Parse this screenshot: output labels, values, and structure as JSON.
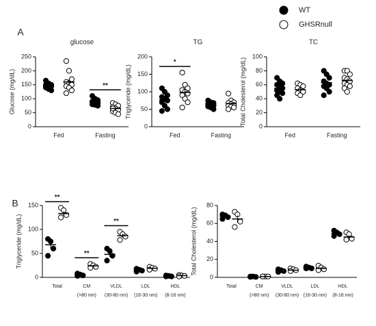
{
  "panel_labels": [
    "A",
    "B"
  ],
  "legend": [
    {
      "name": "WT",
      "fill": "#000000"
    },
    {
      "name": "GHSRnull",
      "fill": "#ffffff"
    }
  ],
  "chart_data": [
    {
      "type": "dot",
      "title": "glucose",
      "ylabel": "Glucose (mg/dL)",
      "categories": [
        "Fed",
        "Fasting"
      ],
      "ylim": [
        0,
        250
      ],
      "yticks": [
        0,
        50,
        100,
        150,
        200,
        250
      ],
      "series": [
        {
          "values": [
            [
              165,
              155,
              150,
              150,
              148,
              145,
              140,
              135,
              130,
              145
            ],
            [
              110,
              100,
              95,
              90,
              88,
              85,
              80,
              78,
              75,
              90
            ]
          ],
          "means": [
            148,
            88
          ],
          "errors": [
            5,
            4
          ]
        },
        {
          "values": [
            [
              235,
              200,
              170,
              160,
              155,
              150,
              145,
              140,
              130,
              120
            ],
            [
              85,
              80,
              75,
              70,
              65,
              60,
              55,
              50,
              45,
              65
            ]
          ],
          "means": [
            160,
            65
          ],
          "errors": [
            10,
            5
          ]
        }
      ],
      "annotations": [
        {
          "label": "**",
          "category": 1
        }
      ]
    },
    {
      "type": "dot",
      "title": "TG",
      "ylabel": "Triglyceride (mg/dL)",
      "categories": [
        "Fed",
        "Fasting"
      ],
      "ylim": [
        0,
        200
      ],
      "yticks": [
        0,
        50,
        100,
        150,
        200
      ],
      "series": [
        {
          "values": [
            [
              110,
              100,
              90,
              85,
              80,
              75,
              70,
              60,
              50,
              45
            ],
            [
              75,
              70,
              68,
              65,
              62,
              60,
              58,
              55,
              50
            ]
          ],
          "means": [
            77,
            63
          ],
          "errors": [
            6,
            3
          ]
        },
        {
          "values": [
            [
              155,
              120,
              110,
              105,
              100,
              95,
              90,
              80,
              70,
              55
            ],
            [
              95,
              75,
              70,
              68,
              65,
              62,
              60,
              58,
              55,
              50
            ]
          ],
          "means": [
            98,
            66
          ],
          "errors": [
            9,
            4
          ]
        }
      ],
      "annotations": [
        {
          "label": "*",
          "category": 0
        }
      ]
    },
    {
      "type": "dot",
      "title": "TC",
      "ylabel": "Total Cholesterol (mg/dL)",
      "categories": [
        "Fed",
        "Fasting"
      ],
      "ylim": [
        0,
        100
      ],
      "yticks": [
        0,
        20,
        40,
        60,
        80,
        100
      ],
      "series": [
        {
          "values": [
            [
              70,
              65,
              62,
              60,
              58,
              55,
              52,
              50,
              48,
              45,
              40
            ],
            [
              80,
              75,
              70,
              65,
              62,
              60,
              58,
              55,
              50,
              45
            ]
          ],
          "means": [
            55,
            63
          ],
          "errors": [
            3,
            3
          ]
        },
        {
          "values": [
            [
              62,
              60,
              58,
              55,
              52,
              50,
              48,
              45,
              50
            ],
            [
              80,
              80,
              75,
              70,
              68,
              65,
              62,
              60,
              58,
              55,
              50
            ]
          ],
          "means": [
            53,
            66
          ],
          "errors": [
            2,
            3
          ]
        }
      ],
      "annotations": []
    },
    {
      "type": "dot",
      "ylabel": "Triglyceride (mg/dL)",
      "categories": [
        "Total",
        "CM",
        "VLDL",
        "LDL",
        "HDL"
      ],
      "subcategories": [
        null,
        "(>80 nm)",
        "(30-80 nm)",
        "(16-30 nm)",
        "(8-16 nm)"
      ],
      "ylim": [
        0,
        150
      ],
      "yticks": [
        0,
        50,
        100,
        150
      ],
      "series": [
        {
          "values": [
            [
              80,
              75,
              60,
              45
            ],
            [
              8,
              6,
              4,
              3
            ],
            [
              60,
              55,
              45,
              35
            ],
            [
              18,
              16,
              14,
              12
            ],
            [
              4,
              3,
              2,
              2
            ]
          ],
          "means": [
            68,
            6,
            48,
            15,
            3
          ],
          "errors": [
            8,
            1,
            5,
            1,
            0.5
          ]
        },
        {
          "values": [
            [
              145,
              140,
              130,
              125
            ],
            [
              28,
              25,
              22,
              20
            ],
            [
              95,
              90,
              85,
              78
            ],
            [
              22,
              20,
              18,
              16
            ],
            [
              5,
              4,
              3,
              2
            ]
          ],
          "means": [
            133,
            24,
            87,
            19,
            3.5
          ],
          "errors": [
            5,
            2,
            4,
            1,
            0.6
          ]
        }
      ],
      "annotations": [
        {
          "label": "**",
          "category": 0
        },
        {
          "label": "**",
          "category": 1
        },
        {
          "label": "**",
          "category": 2
        }
      ]
    },
    {
      "type": "dot",
      "ylabel": "Total Cholesterol (mg/dL)",
      "categories": [
        "Total",
        "CM",
        "VLDL",
        "LDL",
        "HDL"
      ],
      "subcategories": [
        null,
        "(>80 nm)",
        "(30-80 nm)",
        "(16-30 nm)",
        "(8-16 nm)"
      ],
      "ylim": [
        0,
        80
      ],
      "yticks": [
        0,
        20,
        40,
        60,
        80
      ],
      "series": [
        {
          "values": [
            [
              70,
              69,
              67,
              65
            ],
            [
              1,
              1,
              0.5,
              0.5
            ],
            [
              9,
              8,
              7,
              6
            ],
            [
              12,
              11,
              10,
              10
            ],
            [
              52,
              50,
              48,
              46
            ]
          ],
          "means": [
            68,
            0.8,
            7.5,
            11,
            49
          ],
          "errors": [
            1.5,
            0.2,
            0.6,
            0.5,
            1.3
          ]
        },
        {
          "values": [
            [
              73,
              70,
              62,
              56
            ],
            [
              1,
              1,
              1,
              1
            ],
            [
              10,
              9,
              8,
              7
            ],
            [
              13,
              11,
              9,
              8
            ],
            [
              50,
              48,
              43,
              42
            ]
          ],
          "means": [
            65,
            1,
            8,
            10,
            45
          ],
          "errors": [
            4,
            0.1,
            0.6,
            1.1,
            2
          ]
        }
      ],
      "annotations": []
    }
  ]
}
